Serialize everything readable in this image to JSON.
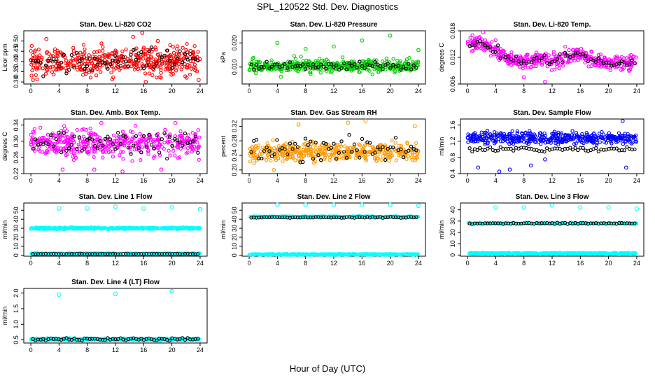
{
  "figure": {
    "title": "SPL_120522  Std. Dev. Diagnostics",
    "xlabel": "Hour of Day (UTC)"
  },
  "chart_data": [
    {
      "type": "scatter",
      "title": "Stan. Dev. Li-820 CO2",
      "ylabel": "Licor ppm",
      "xlim": [
        -1,
        25
      ],
      "ylim": [
        0.29,
        0.55
      ],
      "xticks": [
        0,
        4,
        8,
        12,
        16,
        20,
        24
      ],
      "yticks": [
        0.3,
        0.35,
        0.4,
        0.45,
        0.5
      ],
      "ytick_labels": [
        "0.30",
        "0.35",
        "0.40",
        "0.45",
        "0.50"
      ],
      "color": "#ff0000",
      "main_center": 0.4,
      "main_spread": 0.045,
      "outliers": [
        [
          2.2,
          0.51
        ],
        [
          14.5,
          0.52
        ],
        [
          15.8,
          0.54
        ],
        [
          0.3,
          0.31
        ],
        [
          16.3,
          0.3
        ],
        [
          23.8,
          0.31
        ],
        [
          18.0,
          0.5
        ]
      ],
      "black_level": 0.4,
      "black_spread": 0.04
    },
    {
      "type": "scatter",
      "title": "Stan. Dev. Li-820 Pressure",
      "ylabel": "kPa",
      "xlim": [
        -1,
        25
      ],
      "ylim": [
        0.003,
        0.025
      ],
      "xticks": [
        0,
        4,
        8,
        12,
        16,
        20,
        24
      ],
      "yticks": [
        0.01,
        0.02
      ],
      "ytick_labels": [
        "0.010",
        "0.020"
      ],
      "color": "#00cc00",
      "main_center": 0.0105,
      "main_spread": 0.0018,
      "outliers": [
        [
          4.0,
          0.02
        ],
        [
          8.0,
          0.0175
        ],
        [
          12.0,
          0.0185
        ],
        [
          16.0,
          0.021
        ],
        [
          20.0,
          0.023
        ],
        [
          24.0,
          0.017
        ],
        [
          4.5,
          0.006
        ],
        [
          0.5,
          0.0135
        ]
      ],
      "black_level": 0.0105,
      "black_spread": 0.0012
    },
    {
      "type": "scatter",
      "title": "Stan. Dev. Li-820 Temp.",
      "ylabel": "degrees C",
      "xlim": [
        -1,
        25
      ],
      "ylim": [
        0.006,
        0.018
      ],
      "xticks": [
        0,
        4,
        8,
        12,
        16,
        20,
        24
      ],
      "yticks": [
        0.006,
        0.012,
        0.018
      ],
      "ytick_labels": [
        "0.006",
        "0.012",
        "0.018"
      ],
      "color": "#ff00ff",
      "trend": [
        [
          0,
          0.0145
        ],
        [
          2,
          0.0155
        ],
        [
          4,
          0.0135
        ],
        [
          6,
          0.0115
        ],
        [
          8,
          0.011
        ],
        [
          10,
          0.0118
        ],
        [
          12,
          0.0112
        ],
        [
          14,
          0.0125
        ],
        [
          16,
          0.0128
        ],
        [
          18,
          0.0112
        ],
        [
          20,
          0.0105
        ],
        [
          22,
          0.0108
        ],
        [
          24,
          0.011
        ]
      ],
      "main_spread": 0.0012,
      "outliers": [
        [
          2.2,
          0.018
        ],
        [
          11.0,
          0.0065
        ],
        [
          8.0,
          0.0075
        ]
      ],
      "black_level": 0.0118,
      "black_spread": 0.0012
    },
    {
      "type": "scatter",
      "title": "Stan. Dev. Amb. Box Temp.",
      "ylabel": "degrees C",
      "xlim": [
        -1,
        25
      ],
      "ylim": [
        0.22,
        0.355
      ],
      "xticks": [
        0,
        4,
        8,
        12,
        16,
        20,
        24
      ],
      "yticks": [
        0.22,
        0.26,
        0.3,
        0.34
      ],
      "ytick_labels": [
        "0.22",
        "0.26",
        "0.30",
        "0.34"
      ],
      "color": "#ff00ff",
      "main_center": 0.295,
      "main_spread": 0.022,
      "outliers": [
        [
          4.5,
          0.23
        ],
        [
          9.0,
          0.23
        ],
        [
          13.0,
          0.225
        ],
        [
          18.5,
          0.23
        ],
        [
          10.0,
          0.345
        ],
        [
          20.5,
          0.345
        ]
      ],
      "black_level": 0.295,
      "black_spread": 0.02
    },
    {
      "type": "scatter",
      "title": "Stan. Dev. Gas Stream RH",
      "ylabel": "percent",
      "xlim": [
        -1,
        25
      ],
      "ylim": [
        0.19,
        0.34
      ],
      "xticks": [
        0,
        4,
        8,
        12,
        16,
        20,
        24
      ],
      "yticks": [
        0.2,
        0.24,
        0.28,
        0.32
      ],
      "ytick_labels": [
        "0.20",
        "0.24",
        "0.28",
        "0.32"
      ],
      "color": "#ff9900",
      "main_center": 0.25,
      "main_spread": 0.018,
      "outliers": [
        [
          7.0,
          0.325
        ],
        [
          14.0,
          0.33
        ],
        [
          16.5,
          0.335
        ],
        [
          23.5,
          0.32
        ],
        [
          3.5,
          0.2
        ]
      ],
      "black_level": 0.255,
      "black_spread": 0.025
    },
    {
      "type": "scatter",
      "title": "Stan. Dev. Sample Flow",
      "ylabel": "ml/min",
      "xlim": [
        -1,
        25
      ],
      "ylim": [
        0.4,
        1.75
      ],
      "xticks": [
        0,
        4,
        8,
        12,
        16,
        20,
        24
      ],
      "yticks": [
        0.4,
        0.8,
        1.2,
        1.6
      ],
      "ytick_labels": [
        "0.4",
        "0.8",
        "1.2",
        "1.6"
      ],
      "color": "#0000ff",
      "main_center": 1.28,
      "main_spread": 0.1,
      "outliers": [
        [
          4.5,
          0.45
        ],
        [
          1.5,
          0.55
        ],
        [
          6.0,
          0.5
        ],
        [
          22.0,
          1.7
        ],
        [
          22.5,
          0.55
        ],
        [
          11.0,
          0.75
        ],
        [
          9.0,
          0.6
        ]
      ],
      "black_level": 1.0,
      "black_spread": 0.04
    },
    {
      "type": "scatter",
      "title": "Stan. Dev. Line 1 Flow",
      "ylabel": "ml/min",
      "xlim": [
        -1,
        25
      ],
      "ylim": [
        -1,
        58
      ],
      "xticks": [
        0,
        4,
        8,
        12,
        16,
        20,
        24
      ],
      "yticks": [
        0,
        10,
        20,
        30,
        40,
        50
      ],
      "ytick_labels": [
        "0",
        "10",
        "20",
        "30",
        "40",
        "50"
      ],
      "color": "#00ffff",
      "main_center": 30,
      "main_spread": 0.6,
      "spikes": [
        [
          4,
          52
        ],
        [
          8,
          52
        ],
        [
          12,
          54
        ],
        [
          16,
          52
        ],
        [
          20,
          53
        ],
        [
          24,
          51
        ]
      ],
      "low_level": 2.0,
      "black_level": 1.5,
      "black_spread": 0.2
    },
    {
      "type": "scatter",
      "title": "Stan. Dev. Line 2 Flow",
      "ylabel": "ml/min",
      "xlim": [
        -1,
        25
      ],
      "ylim": [
        -1,
        58
      ],
      "xticks": [
        0,
        4,
        8,
        12,
        16,
        20,
        24
      ],
      "yticks": [
        0,
        10,
        20,
        30,
        40,
        50
      ],
      "ytick_labels": [
        "0",
        "10",
        "20",
        "30",
        "40",
        "50"
      ],
      "color": "#00ffff",
      "main_center": 1.0,
      "main_spread": 0.4,
      "spikes": [
        [
          4,
          56
        ],
        [
          8,
          56
        ],
        [
          12,
          56
        ],
        [
          16,
          56
        ],
        [
          20,
          56
        ],
        [
          24,
          55
        ]
      ],
      "high_level": 43,
      "black_level": 42,
      "black_spread": 0.4
    },
    {
      "type": "scatter",
      "title": "Stan. Dev. Line 3 Flow",
      "ylabel": "ml/min",
      "xlim": [
        -1,
        25
      ],
      "ylim": [
        -1,
        46
      ],
      "xticks": [
        0,
        4,
        8,
        12,
        16,
        20,
        24
      ],
      "yticks": [
        0,
        10,
        20,
        30,
        40
      ],
      "ytick_labels": [
        "0",
        "10",
        "20",
        "30",
        "40"
      ],
      "color": "#00ffff",
      "main_center": 1.5,
      "main_spread": 0.4,
      "spikes": [
        [
          4,
          42
        ],
        [
          8,
          42
        ],
        [
          12,
          44
        ],
        [
          16,
          42
        ],
        [
          20,
          42
        ],
        [
          24,
          41
        ]
      ],
      "high_level": 28,
      "black_level": 28,
      "black_spread": 0.4
    },
    {
      "type": "scatter",
      "title": "Stan. Dev. Line 4 (LT) Flow",
      "ylabel": "ml/min",
      "xlim": [
        -1,
        25
      ],
      "ylim": [
        0.4,
        2.15
      ],
      "xticks": [
        0,
        4,
        8,
        12,
        16,
        20,
        24
      ],
      "yticks": [
        0.5,
        1.0,
        1.5,
        2.0
      ],
      "ytick_labels": [
        "0.5",
        "1.0",
        "1.5",
        "2.0"
      ],
      "color": "#00ffff",
      "main_center": 0.52,
      "main_spread": 0.02,
      "spikes": [
        [
          4,
          1.95
        ],
        [
          12,
          1.97
        ],
        [
          20,
          2.06
        ]
      ],
      "black_level": 0.52,
      "black_spread": 0.03
    }
  ]
}
